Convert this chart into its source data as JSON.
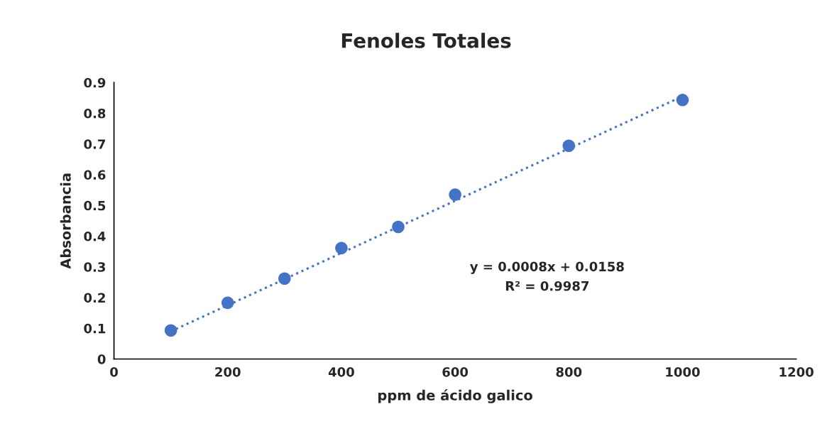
{
  "chart_data": {
    "type": "scatter",
    "title": "Fenoles Totales",
    "xlabel": "ppm de ácido galico",
    "ylabel": "Absorbancia",
    "xlim": [
      0,
      1200
    ],
    "xticks": [
      0,
      200,
      400,
      600,
      800,
      1000,
      1200
    ],
    "ylim": [
      0,
      0.9
    ],
    "yticks": [
      0,
      0.1,
      0.2,
      0.3,
      0.4,
      0.5,
      0.6,
      0.7,
      0.8,
      0.9
    ],
    "grid": false,
    "legend": false,
    "marker": "circle",
    "series": [
      {
        "color": "#4472c4",
        "x": [
          100,
          200,
          300,
          400,
          500,
          600,
          800,
          1000
        ],
        "values": [
          0.093,
          0.183,
          0.262,
          0.361,
          0.43,
          0.535,
          0.694,
          0.843
        ]
      },
      {
        "type": "line",
        "color": "#4472c4",
        "line_style": "dotted",
        "marker": "none",
        "x": [
          100,
          1000
        ],
        "values": [
          0.09,
          0.855
        ]
      }
    ],
    "annotations": [
      "y = 0.0008x + 0.0158",
      "R² = 0.9987"
    ]
  }
}
